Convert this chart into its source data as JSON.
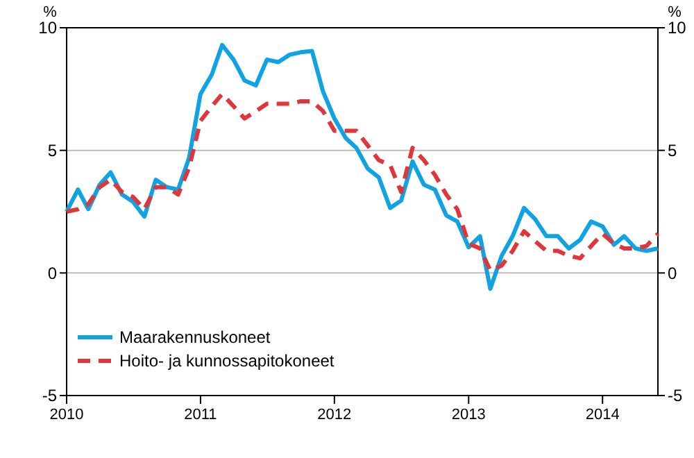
{
  "chart_data": {
    "type": "line",
    "ylabel": "%",
    "y2label": "%",
    "x": [
      "2010-01",
      "2010-02",
      "2010-03",
      "2010-04",
      "2010-05",
      "2010-06",
      "2010-07",
      "2010-08",
      "2010-09",
      "2010-10",
      "2010-11",
      "2010-12",
      "2011-01",
      "2011-02",
      "2011-03",
      "2011-04",
      "2011-05",
      "2011-06",
      "2011-07",
      "2011-08",
      "2011-09",
      "2011-10",
      "2011-11",
      "2011-12",
      "2012-01",
      "2012-02",
      "2012-03",
      "2012-04",
      "2012-05",
      "2012-06",
      "2012-07",
      "2012-08",
      "2012-09",
      "2012-10",
      "2012-11",
      "2012-12",
      "2013-01",
      "2013-02",
      "2013-03",
      "2013-04",
      "2013-05",
      "2013-06",
      "2013-07",
      "2013-08",
      "2013-09",
      "2013-10",
      "2013-11",
      "2013-12",
      "2014-01",
      "2014-02",
      "2014-03",
      "2014-04",
      "2014-05",
      "2014-06"
    ],
    "series": [
      {
        "name": "Maarakennuskoneet",
        "color": "#0fa3e3",
        "line_style": "solid",
        "values": [
          2.5,
          3.4,
          2.6,
          3.6,
          4.1,
          3.2,
          2.9,
          2.3,
          3.8,
          3.5,
          3.4,
          4.7,
          7.3,
          8.1,
          9.3,
          8.7,
          7.85,
          7.65,
          8.7,
          8.6,
          8.9,
          9.0,
          9.05,
          7.4,
          6.3,
          5.5,
          5.1,
          4.25,
          3.9,
          2.65,
          2.95,
          4.55,
          3.6,
          3.4,
          2.35,
          2.1,
          1.05,
          1.5,
          -0.65,
          0.7,
          1.5,
          2.65,
          2.2,
          1.5,
          1.5,
          1.0,
          1.35,
          2.1,
          1.9,
          1.15,
          1.5,
          1.0,
          0.9,
          1.0
        ]
      },
      {
        "name": "Hoito- ja kunnossapitokoneet",
        "color": "#e0353b",
        "line_style": "dashed",
        "values": [
          2.5,
          2.6,
          2.8,
          3.5,
          3.8,
          3.3,
          3.1,
          2.6,
          3.5,
          3.5,
          3.2,
          4.3,
          6.2,
          6.8,
          7.3,
          6.8,
          6.3,
          6.6,
          6.9,
          6.9,
          6.9,
          7.0,
          7.0,
          6.6,
          5.8,
          5.8,
          5.8,
          5.2,
          4.6,
          4.4,
          3.3,
          5.1,
          4.6,
          4.0,
          3.2,
          2.6,
          1.2,
          1.0,
          0.1,
          0.3,
          0.9,
          1.7,
          1.3,
          0.9,
          0.9,
          0.7,
          0.6,
          1.1,
          1.6,
          1.2,
          1.0,
          1.0,
          1.1,
          1.6
        ]
      }
    ],
    "xlim": [
      "2010-01",
      "2014-06"
    ],
    "xticks": [
      "2010",
      "2011",
      "2012",
      "2013",
      "2014"
    ],
    "ylim": [
      -5,
      10
    ],
    "yticks": [
      -5,
      0,
      5,
      10
    ],
    "y2lim": [
      -5,
      10
    ],
    "y2ticks": [
      -5,
      0,
      5,
      10
    ],
    "grid": "y",
    "legend": "bottom left"
  }
}
